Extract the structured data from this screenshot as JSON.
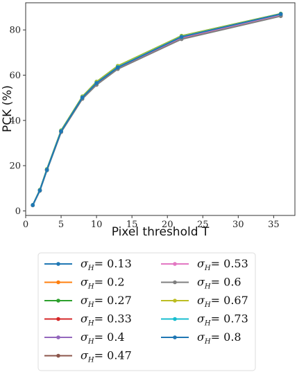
{
  "chart_data": {
    "type": "line",
    "xlabel": "Pixel threshold T",
    "ylabel": "PCK (%)",
    "xlim": [
      0,
      38
    ],
    "ylim": [
      -2,
      92
    ],
    "xticks": [
      0,
      5,
      10,
      15,
      20,
      25,
      30,
      35
    ],
    "yticks": [
      0,
      20,
      40,
      60,
      80
    ],
    "grid": false,
    "legend_placement": "below plot, two columns",
    "x": [
      1,
      2,
      3,
      5,
      8,
      10,
      13,
      22,
      36
    ],
    "legend_prefix": "σ",
    "legend_subscript": "H",
    "series": [
      {
        "name": "0.13",
        "color": "#1f77b4",
        "values": [
          2.5,
          9.0,
          18.0,
          35.0,
          50.0,
          56.5,
          63.5,
          77.0,
          87.0
        ]
      },
      {
        "name": "0.2",
        "color": "#ff7f0e",
        "values": [
          2.6,
          9.2,
          18.3,
          35.3,
          50.3,
          56.8,
          63.8,
          77.2,
          87.1
        ]
      },
      {
        "name": "0.27",
        "color": "#2ca02c",
        "values": [
          2.6,
          9.3,
          18.5,
          35.6,
          50.6,
          57.1,
          64.1,
          77.4,
          87.2
        ]
      },
      {
        "name": "0.33",
        "color": "#d62728",
        "values": [
          2.5,
          9.0,
          18.1,
          35.0,
          49.8,
          56.0,
          63.0,
          76.3,
          86.3
        ]
      },
      {
        "name": "0.4",
        "color": "#9467bd",
        "values": [
          2.5,
          9.1,
          18.2,
          35.2,
          50.1,
          56.5,
          63.5,
          76.8,
          86.8
        ]
      },
      {
        "name": "0.47",
        "color": "#8c564b",
        "values": [
          2.5,
          8.9,
          18.0,
          34.9,
          49.6,
          55.8,
          62.8,
          76.0,
          86.2
        ]
      },
      {
        "name": "0.53",
        "color": "#e377c2",
        "values": [
          2.5,
          9.0,
          18.1,
          35.1,
          50.0,
          56.3,
          63.3,
          76.6,
          86.6
        ]
      },
      {
        "name": "0.6",
        "color": "#7f7f7f",
        "values": [
          2.5,
          8.9,
          17.9,
          34.8,
          49.5,
          55.7,
          62.7,
          75.9,
          86.1
        ]
      },
      {
        "name": "0.67",
        "color": "#bcbd22",
        "values": [
          2.6,
          9.2,
          18.4,
          35.5,
          50.5,
          57.0,
          64.0,
          77.3,
          87.1
        ]
      },
      {
        "name": "0.73",
        "color": "#17becf",
        "values": [
          2.6,
          9.1,
          18.2,
          35.3,
          50.2,
          56.6,
          63.6,
          77.0,
          87.0
        ]
      },
      {
        "name": "0.8",
        "color": "#1f77b4",
        "values": [
          2.6,
          9.1,
          18.2,
          35.2,
          50.1,
          56.5,
          63.4,
          76.9,
          87.0
        ]
      }
    ]
  }
}
